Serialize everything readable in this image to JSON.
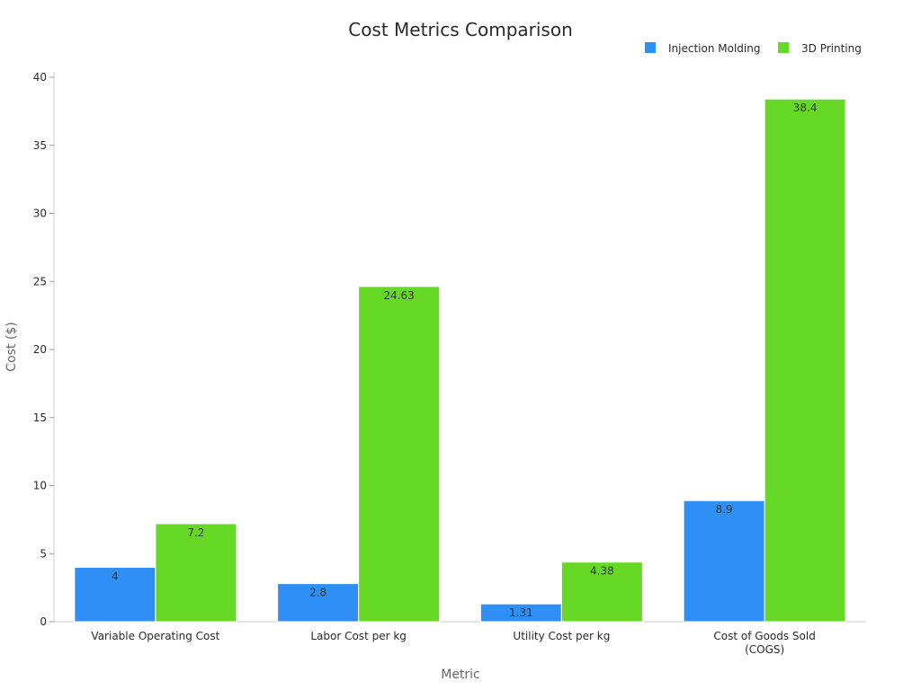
{
  "chart_data": {
    "type": "bar",
    "title": "Cost Metrics Comparison",
    "xlabel": "Metric",
    "ylabel": "Cost ($)",
    "categories": [
      "Variable Operating Cost",
      "Labor Cost per kg",
      "Utility Cost per kg",
      "Cost of Goods Sold (COGS)"
    ],
    "series": [
      {
        "name": "Injection Molding",
        "values": [
          4,
          2.8,
          1.31,
          8.9
        ],
        "color": "#2f8ff5"
      },
      {
        "name": "3D Printing",
        "values": [
          7.2,
          24.63,
          4.38,
          38.4
        ],
        "color": "#66d926"
      }
    ],
    "ylim": [
      0,
      40
    ],
    "yticks": [
      0,
      5,
      10,
      15,
      20,
      25,
      30,
      35,
      40
    ],
    "grid": false,
    "legend": "top-right",
    "data_labels": true
  }
}
